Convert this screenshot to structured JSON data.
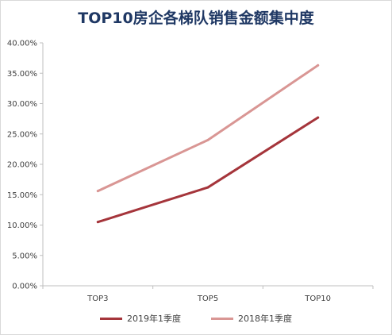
{
  "chart_data": {
    "type": "line",
    "title": "TOP10房企各梯队销售金额集中度",
    "categories": [
      "TOP3",
      "TOP5",
      "TOP10"
    ],
    "ylim": [
      0,
      40
    ],
    "yticks": [
      "0.00%",
      "5.00%",
      "10.00%",
      "15.00%",
      "20.00%",
      "25.00%",
      "30.00%",
      "35.00%",
      "40.00%"
    ],
    "ytick_values": [
      0,
      5,
      10,
      15,
      20,
      25,
      30,
      35,
      40
    ],
    "grid": false,
    "legend_position": "bottom",
    "series": [
      {
        "name": "2019年1季度",
        "values": [
          10.5,
          16.2,
          27.7
        ],
        "color": "#a5353b"
      },
      {
        "name": "2018年1季度",
        "values": [
          15.6,
          24.0,
          36.3
        ],
        "color": "#d99694"
      }
    ]
  }
}
